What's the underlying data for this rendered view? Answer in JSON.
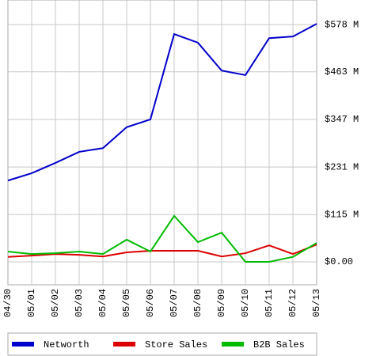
{
  "chart_data": {
    "type": "line",
    "categories": [
      "04/30",
      "05/01",
      "05/02",
      "05/03",
      "05/04",
      "05/05",
      "05/06",
      "05/07",
      "05/08",
      "05/09",
      "05/10",
      "05/11",
      "05/12",
      "05/13"
    ],
    "series": [
      {
        "name": "Networth",
        "color": "#0000cc",
        "values": [
          198,
          216,
          241,
          268,
          277,
          328,
          347,
          555,
          534,
          466,
          455,
          545,
          549,
          580
        ]
      },
      {
        "name": "Store Sales",
        "color": "#dd0000",
        "values": [
          12,
          15,
          19,
          17,
          13,
          23,
          27,
          27,
          27,
          13,
          21,
          40,
          19,
          42
        ]
      },
      {
        "name": "B2B Sales",
        "color": "#00bb00",
        "values": [
          25,
          19,
          21,
          25,
          19,
          54,
          25,
          112,
          48,
          71,
          0,
          0,
          12,
          46
        ]
      }
    ],
    "ylim": [
      -56,
      638
    ],
    "yticks": [
      {
        "value": 0,
        "label": "$0.00"
      },
      {
        "value": 115,
        "label": "$115 M"
      },
      {
        "value": 231,
        "label": "$231 M"
      },
      {
        "value": 347,
        "label": "$347 M"
      },
      {
        "value": 463,
        "label": "$463 M"
      },
      {
        "value": 578,
        "label": "$578 M"
      }
    ],
    "grid": true,
    "legend": "bottom"
  }
}
